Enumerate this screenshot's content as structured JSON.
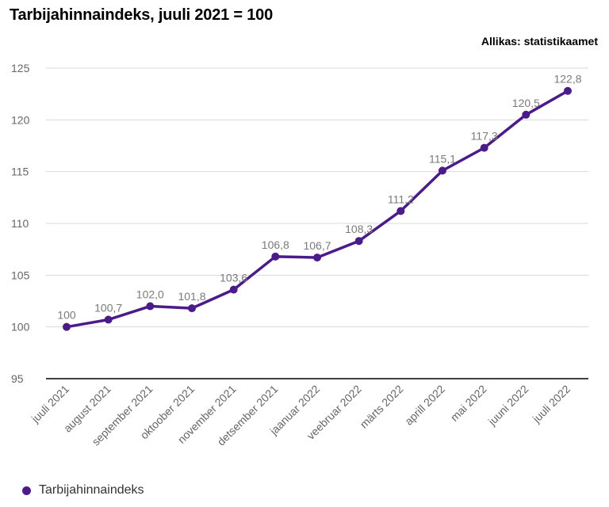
{
  "title": "Tarbijahinnaindeks, juuli 2021 = 100",
  "source": "Allikas: statistikaamet",
  "colors": {
    "series": "#4B1B8A",
    "grid": "#d9d9d9",
    "axis": "#000000",
    "tick_text": "#666666",
    "label_text": "#7a7a7a"
  },
  "chart_data": {
    "type": "line",
    "x": [
      "juuli 2021",
      "august 2021",
      "september 2021",
      "oktoober 2021",
      "november 2021",
      "detsember 2021",
      "jaanuar 2022",
      "veebruar 2022",
      "märts 2022",
      "aprill 2022",
      "mai 2022",
      "juuni 2022",
      "juuli 2022"
    ],
    "series": [
      {
        "name": "Tarbijahinnaindeks",
        "values": [
          100,
          100.7,
          102.0,
          101.8,
          103.6,
          106.8,
          106.7,
          108.3,
          111.2,
          115.1,
          117.3,
          120.5,
          122.8
        ],
        "labels": [
          "100",
          "100,7",
          "102,0",
          "101,8",
          "103,6",
          "106,8",
          "106,7",
          "108,3",
          "111,2",
          "115,1",
          "117,3",
          "120,5",
          "122,8"
        ]
      }
    ],
    "ylim": [
      95,
      125
    ],
    "yticks": [
      95,
      100,
      105,
      110,
      115,
      120,
      125
    ],
    "grid": true,
    "legend": "bottom-left"
  }
}
